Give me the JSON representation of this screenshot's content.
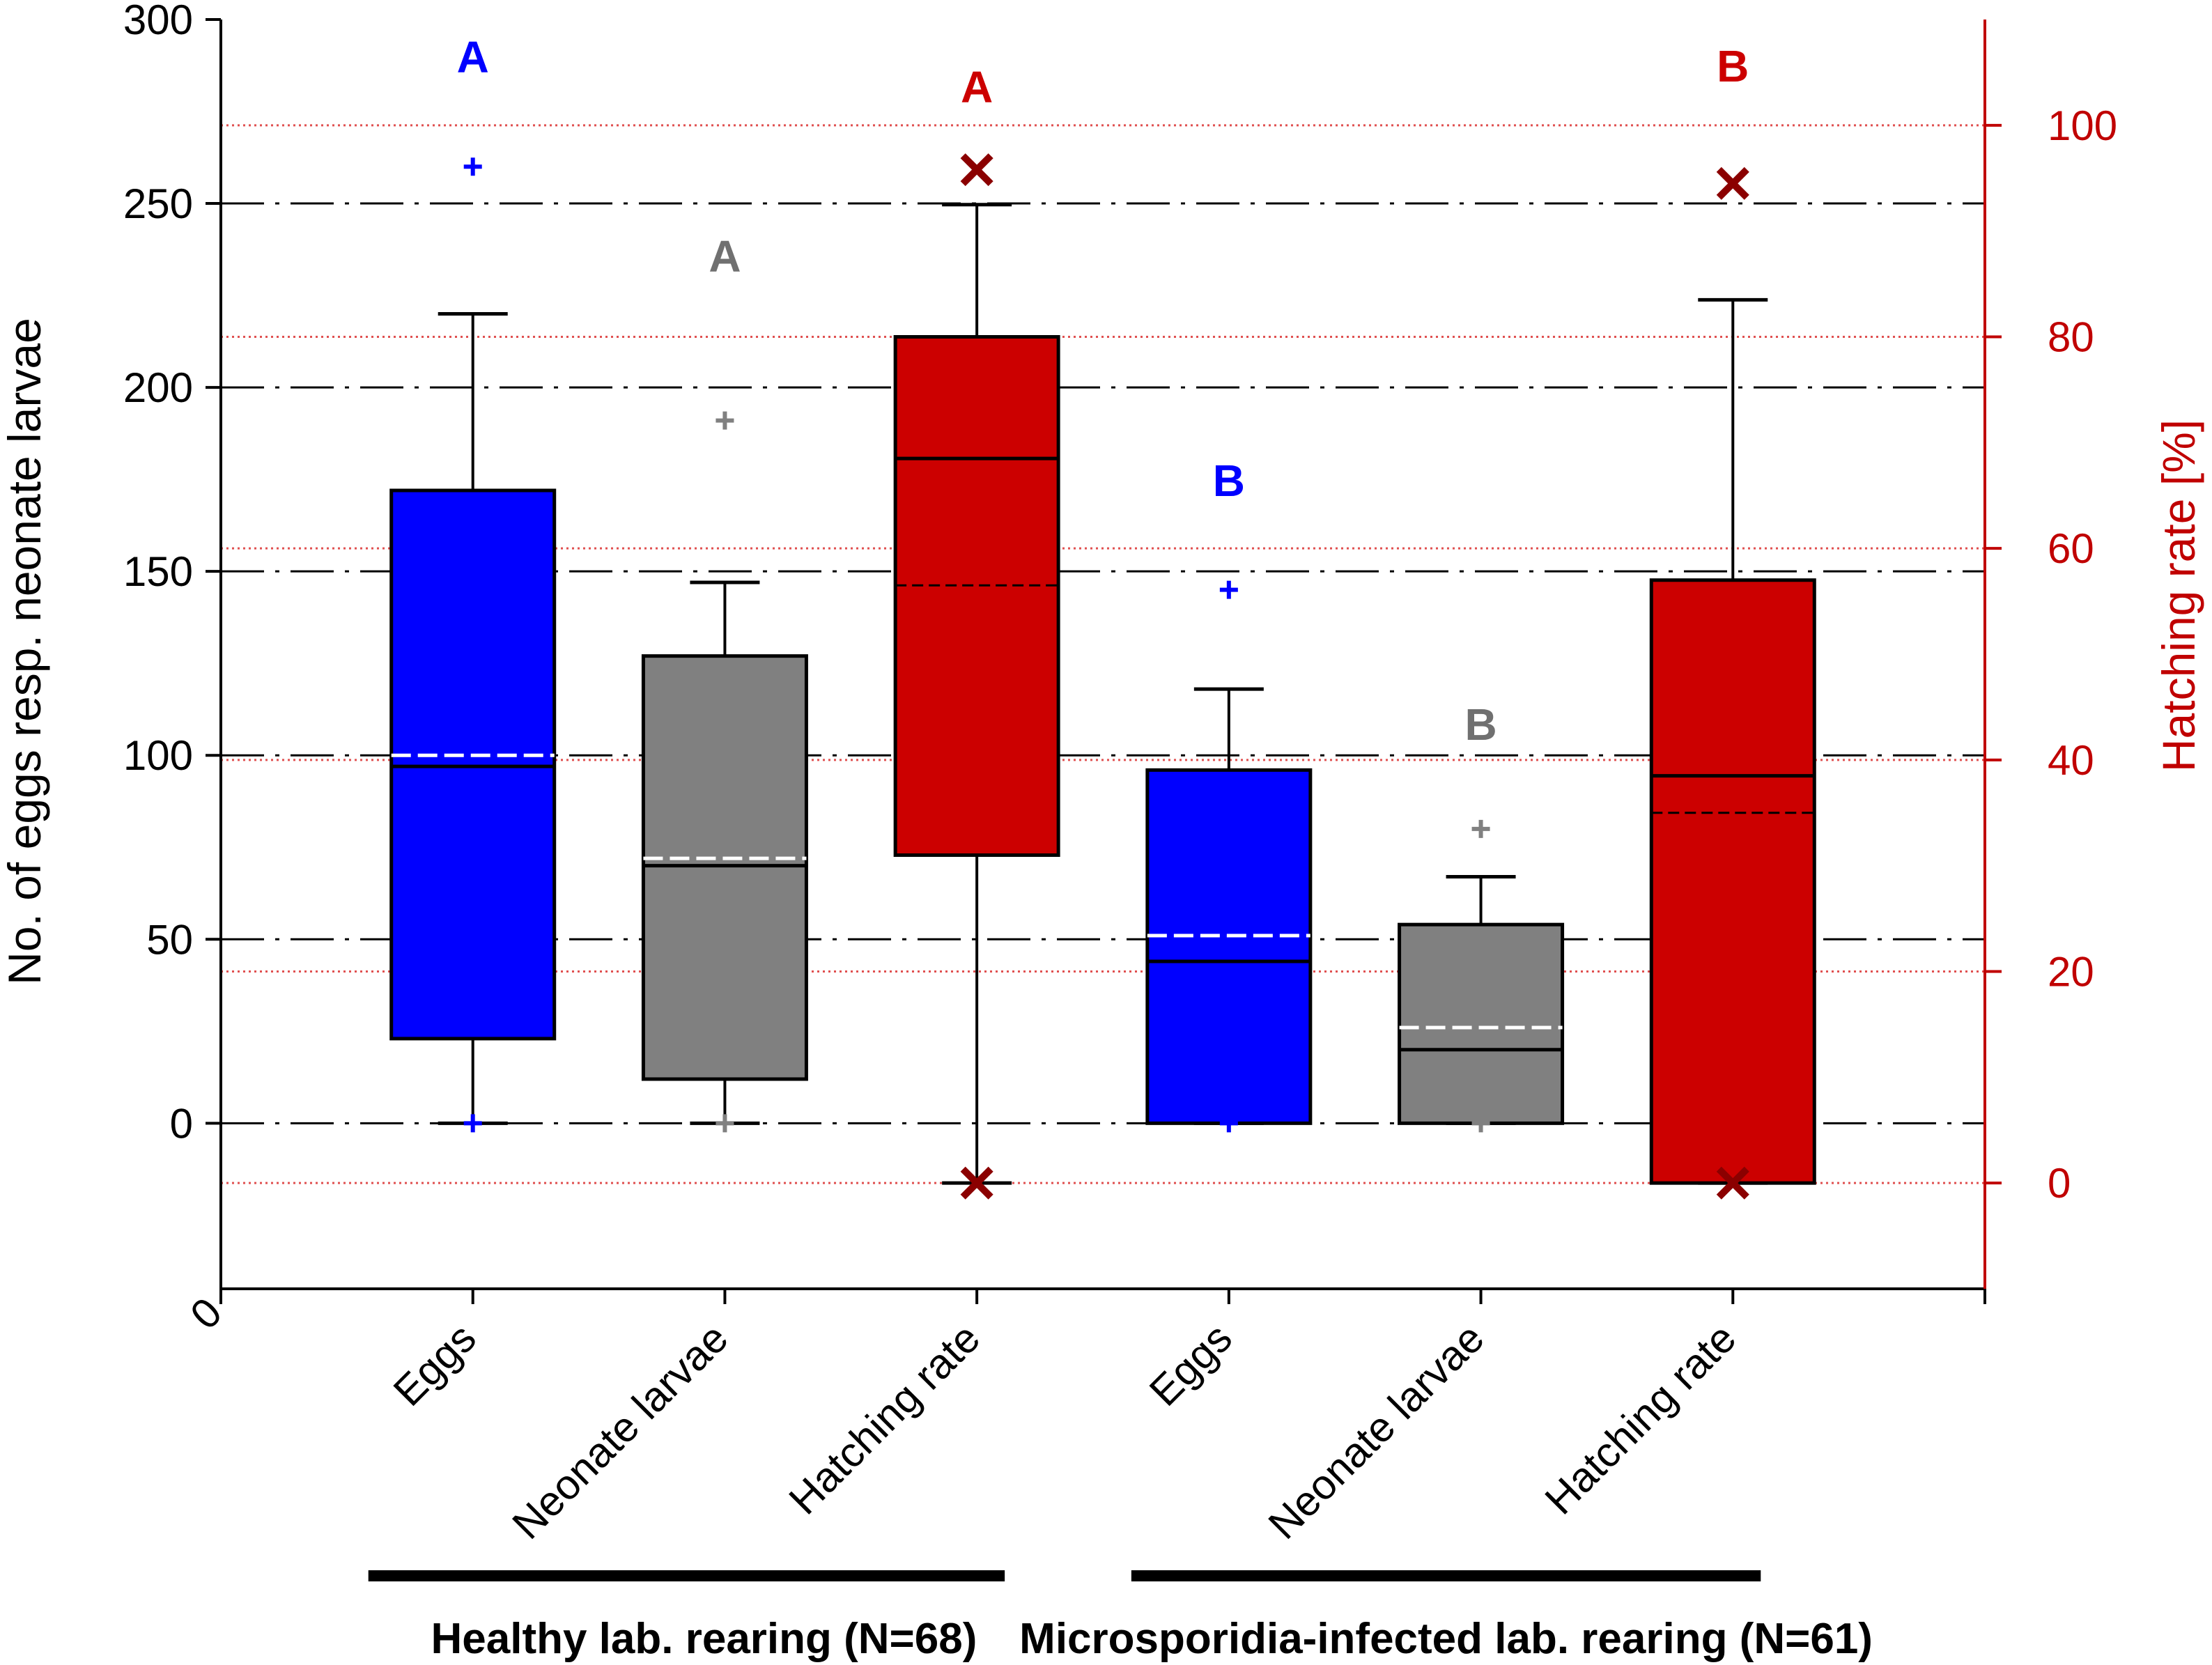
{
  "chart_data": {
    "type": "box",
    "left_axis": {
      "label": "No. of eggs resp. neonate larvae",
      "ticks": [
        0,
        50,
        100,
        150,
        200,
        250,
        300
      ],
      "tick_labels": [
        "0",
        "50",
        "100",
        "150",
        "200",
        "250",
        "300"
      ],
      "range": [
        -45,
        300
      ]
    },
    "right_axis": {
      "label": "Hatching rate [%]",
      "ticks": [
        0,
        20,
        40,
        60,
        80,
        100
      ],
      "tick_labels": [
        "0",
        "20",
        "40",
        "60",
        "80",
        "100"
      ],
      "range": [
        -10,
        110
      ],
      "color": "#c00000"
    },
    "x_origin_label": "0",
    "colors": {
      "eggs": "#0000ff",
      "larvae": "#808080",
      "hatch": "#cc0000",
      "hatch_marker": "#8b0000",
      "axis_right": "#c00000",
      "grid_red": "#e05050"
    },
    "boxes": [
      {
        "category": "Eggs",
        "group": "Healthy",
        "axis": "left",
        "fill": "#0000ff",
        "marker_color": "#0000ff",
        "marker": "plus",
        "q1": 23,
        "median": 97,
        "mean": 100,
        "q3": 172,
        "whisker_low": 0,
        "whisker_high": 220,
        "outliers": [
          260,
          0
        ],
        "letter": "A"
      },
      {
        "category": "Neonate larvae",
        "group": "Healthy",
        "axis": "left",
        "fill": "#808080",
        "marker_color": "#808080",
        "marker": "plus",
        "q1": 12,
        "median": 70,
        "mean": 72,
        "q3": 127,
        "whisker_low": 0,
        "whisker_high": 147,
        "outliers": [
          191,
          0
        ],
        "letter": "A"
      },
      {
        "category": "Hatching rate",
        "group": "Healthy",
        "axis": "right",
        "fill": "#cc0000",
        "marker_color": "#8b0000",
        "marker": "x",
        "q1": 31,
        "median": 68.5,
        "mean": 56.5,
        "q3": 80,
        "whisker_low": 0,
        "whisker_high": 92.5,
        "outliers": [
          95.8,
          0
        ],
        "letter": "A"
      },
      {
        "category": "Eggs",
        "group": "Microsporidia-infected",
        "axis": "left",
        "fill": "#0000ff",
        "marker_color": "#0000ff",
        "marker": "plus",
        "q1": 0,
        "median": 44,
        "mean": 51,
        "q3": 96,
        "whisker_low": 0,
        "whisker_high": 118,
        "outliers": [
          145,
          0
        ],
        "letter": "B"
      },
      {
        "category": "Neonate larvae",
        "group": "Microsporidia-infected",
        "axis": "left",
        "fill": "#808080",
        "marker_color": "#808080",
        "marker": "plus",
        "q1": 0,
        "median": 20,
        "mean": 26,
        "q3": 54,
        "whisker_low": 0,
        "whisker_high": 67,
        "outliers": [
          80,
          0
        ],
        "letter": "B"
      },
      {
        "category": "Hatching rate",
        "group": "Microsporidia-infected",
        "axis": "right",
        "fill": "#cc0000",
        "marker_color": "#8b0000",
        "marker": "x",
        "q1": 0,
        "median": 38.5,
        "mean": 35,
        "q3": 57,
        "whisker_low": 0,
        "whisker_high": 83.5,
        "outliers": [
          94.5,
          0
        ],
        "letter": "B"
      }
    ],
    "groups": [
      {
        "label": "Healthy lab. rearing (N=68)"
      },
      {
        "label": "Microsporidia-infected lab. rearing (N=61)"
      }
    ]
  }
}
